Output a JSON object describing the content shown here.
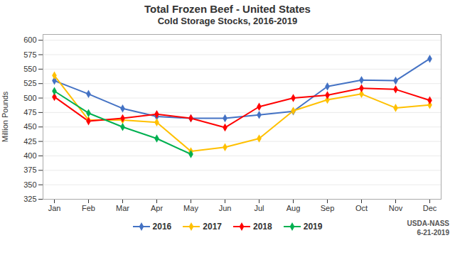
{
  "chart_data": {
    "type": "line",
    "title": "Total Frozen Beef - United States",
    "subtitle": "Cold Storage Stocks, 2016-2019",
    "y_label": "Million Pounds",
    "annotation": "USDA-NASS\n6-21-2019",
    "categories": [
      "Jan",
      "Feb",
      "Mar",
      "Apr",
      "May",
      "Jun",
      "Jul",
      "Aug",
      "Sep",
      "Oct",
      "Nov",
      "Dec"
    ],
    "series": [
      {
        "name": "2016",
        "color": "#4472C4",
        "values": [
          530,
          507,
          482,
          468,
          465,
          465,
          471,
          477,
          520,
          531,
          530,
          568
        ]
      },
      {
        "name": "2017",
        "color": "#FFC000",
        "values": [
          539,
          462,
          462,
          458,
          408,
          415,
          430,
          478,
          497,
          507,
          483,
          488
        ]
      },
      {
        "name": "2018",
        "color": "#FF0000",
        "values": [
          502,
          460,
          465,
          472,
          465,
          449,
          485,
          500,
          505,
          517,
          515,
          496
        ]
      },
      {
        "name": "2019",
        "color": "#00B050",
        "values": [
          512,
          474,
          450,
          430,
          403,
          null,
          null,
          null,
          null,
          null,
          null,
          null
        ]
      }
    ],
    "ylim": [
      325,
      610
    ],
    "yticks": [
      325,
      350,
      375,
      400,
      425,
      450,
      475,
      500,
      525,
      550,
      575,
      600
    ],
    "grid": true,
    "legend": "bottom",
    "marker": "diamond"
  }
}
